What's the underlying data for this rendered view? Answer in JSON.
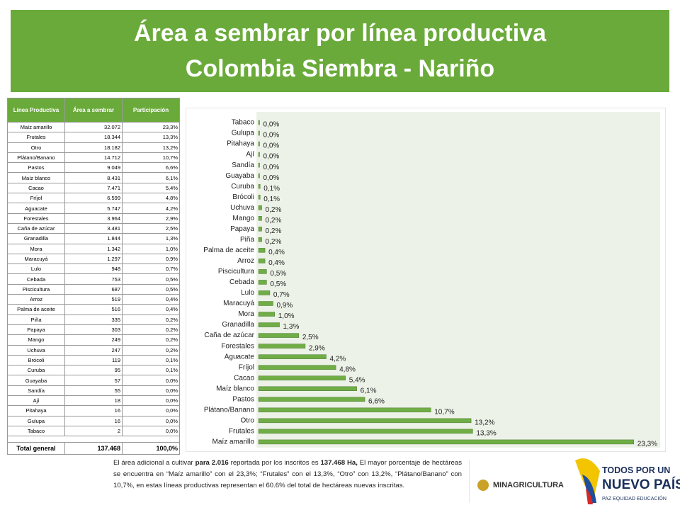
{
  "header": {
    "title": [
      "Área a sembrar por línea productiva",
      "Colombia Siembra - Nariño"
    ]
  },
  "table": {
    "columns": [
      "Línea Productiva",
      "Área a sembrar",
      "Participación"
    ],
    "rows": [
      [
        "Maíz amarillo",
        "32.072",
        "23,3%"
      ],
      [
        "Frutales",
        "18.344",
        "13,3%"
      ],
      [
        "Otro",
        "18.182",
        "13,2%"
      ],
      [
        "Plátano/Banano",
        "14.712",
        "10,7%"
      ],
      [
        "Pastos",
        "9.049",
        "6,6%"
      ],
      [
        "Maíz blanco",
        "8.431",
        "6,1%"
      ],
      [
        "Cacao",
        "7.471",
        "5,4%"
      ],
      [
        "Fríjol",
        "6.599",
        "4,8%"
      ],
      [
        "Aguacate",
        "5.747",
        "4,2%"
      ],
      [
        "Forestales",
        "3.964",
        "2,9%"
      ],
      [
        "Caña de azúcar",
        "3.481",
        "2,5%"
      ],
      [
        "Granadilla",
        "1.844",
        "1,3%"
      ],
      [
        "Mora",
        "1.342",
        "1,0%"
      ],
      [
        "Maracuyá",
        "1.297",
        "0,9%"
      ],
      [
        "Lulo",
        "948",
        "0,7%"
      ],
      [
        "Cebada",
        "753",
        "0,5%"
      ],
      [
        "Piscicultura",
        "687",
        "0,5%"
      ],
      [
        "Arroz",
        "519",
        "0,4%"
      ],
      [
        "Palma de aceite",
        "516",
        "0,4%"
      ],
      [
        "Piña",
        "335",
        "0,2%"
      ],
      [
        "Papaya",
        "303",
        "0,2%"
      ],
      [
        "Mango",
        "249",
        "0,2%"
      ],
      [
        "Uchuva",
        "247",
        "0,2%"
      ],
      [
        "Brócoli",
        "119",
        "0,1%"
      ],
      [
        "Curuba",
        "95",
        "0,1%"
      ],
      [
        "Guayaba",
        "57",
        "0,0%"
      ],
      [
        "Sandía",
        "55",
        "0,0%"
      ],
      [
        "Ají",
        "18",
        "0,0%"
      ],
      [
        "Pitahaya",
        "16",
        "0,0%"
      ],
      [
        "Gulupa",
        "16",
        "0,0%"
      ],
      [
        "Tabaco",
        "2",
        "0,0%"
      ]
    ],
    "total": [
      "Total general",
      "137.468",
      "100,0%"
    ]
  },
  "chart_data": {
    "type": "hbar",
    "color": "#70ad47",
    "categories": [
      "Tabaco",
      "Gulupa",
      "Pitahaya",
      "Ají",
      "Sandía",
      "Guayaba",
      "Curuba",
      "Brócoli",
      "Uchuva",
      "Mango",
      "Papaya",
      "Piña",
      "Palma de aceite",
      "Arroz",
      "Piscicultura",
      "Cebada",
      "Lulo",
      "Maracuyá",
      "Mora",
      "Granadilla",
      "Caña de azúcar",
      "Forestales",
      "Aguacate",
      "Fríjol",
      "Cacao",
      "Maíz blanco",
      "Pastos",
      "Plátano/Banano",
      "Otro",
      "Frutales",
      "Maíz amarillo"
    ],
    "values": [
      0,
      0,
      0,
      0,
      0,
      0,
      0.1,
      0.1,
      0.2,
      0.2,
      0.2,
      0.2,
      0.4,
      0.4,
      0.5,
      0.5,
      0.7,
      0.9,
      1.0,
      1.3,
      2.5,
      2.9,
      4.2,
      4.8,
      5.4,
      6.1,
      6.6,
      10.7,
      13.2,
      13.3,
      23.3
    ],
    "value_labels": [
      "0,0%",
      "0,0%",
      "0,0%",
      "0,0%",
      "0,0%",
      "0,0%",
      "0,1%",
      "0,1%",
      "0,2%",
      "0,2%",
      "0,2%",
      "0,2%",
      "0,4%",
      "0,4%",
      "0,5%",
      "0,5%",
      "0,7%",
      "0,9%",
      "1,0%",
      "1,3%",
      "2,5%",
      "2,9%",
      "4,2%",
      "4,8%",
      "5,4%",
      "6,1%",
      "6,6%",
      "10,7%",
      "13,2%",
      "13,3%",
      "23,3%"
    ],
    "xlim": [
      0,
      24.5
    ]
  },
  "footer": {
    "paragraph": [
      {
        "text": "El área adicional a cultivar ",
        "bold": false
      },
      {
        "text": "para 2.016",
        "bold": true
      },
      {
        "text": " reportada por los inscritos es ",
        "bold": false
      },
      {
        "text": "137.468 Ha,",
        "bold": true
      },
      {
        "text": " El mayor porcentaje de hectáreas se encuentra en “Maíz amarillo” con el 23,3%; “Frutales” con el 13,3%, “Otro” con 13,2%, “Plátano/Banano” con 10,7%, en estas líneas productivas representan el 60.6% del total de hectáreas nuevas inscritas.",
        "bold": false
      }
    ]
  },
  "logos": {
    "ministry": "MINAGRICULTURA",
    "slogan": [
      "TODOS POR UN",
      "NUEVO PAÍS"
    ],
    "motto": "PAZ EQUIDAD EDUCACIÓN"
  }
}
